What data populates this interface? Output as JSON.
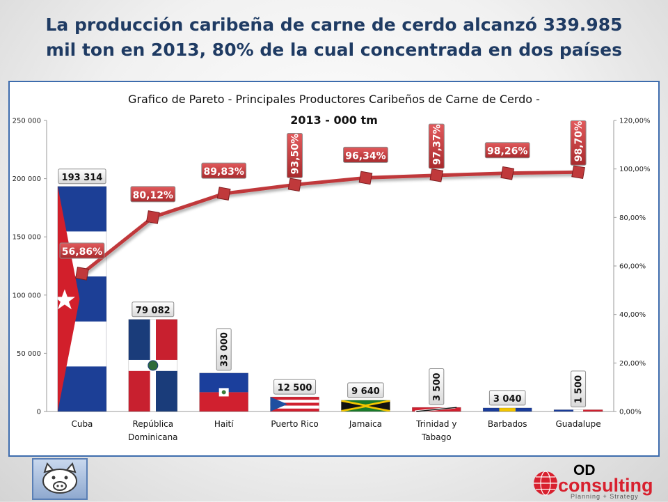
{
  "headline": {
    "line1": "La producción caribeña de carne de cerdo alcanzó 339.985",
    "line2": "mil ton en 2013, 80% de la cual concentrada en dos países"
  },
  "chart_data": {
    "type": "bar",
    "title_line1": "Grafico de Pareto - Principales Productores Caribeños de Carne de Cerdo -",
    "title_line2": "2013 - 000 tm",
    "categories": [
      [
        "Cuba"
      ],
      [
        "República",
        "Dominicana"
      ],
      [
        "Haití"
      ],
      [
        "Puerto Rico"
      ],
      [
        "Jamaica"
      ],
      [
        "Trinidad y",
        "Tabago"
      ],
      [
        "Barbados"
      ],
      [
        "Guadalupe"
      ]
    ],
    "values": [
      193314,
      79082,
      33000,
      12500,
      9640,
      3500,
      3040,
      1500
    ],
    "value_labels": [
      "193 314",
      "79 082",
      "33 000",
      "12 500",
      "9 640",
      "3 500",
      "3 040",
      "1 500"
    ],
    "value_label_vertical": [
      false,
      false,
      true,
      false,
      false,
      true,
      false,
      true
    ],
    "cumulative_pct": [
      56.86,
      80.12,
      89.83,
      93.5,
      96.34,
      97.37,
      98.26,
      98.7
    ],
    "cumulative_labels": [
      "56,86%",
      "80,12%",
      "89,83%",
      "93,50%",
      "96,34%",
      "97,37%",
      "98,26%",
      "98,70%"
    ],
    "cumulative_label_vertical": [
      false,
      false,
      false,
      true,
      false,
      true,
      false,
      true
    ],
    "ylim": [
      0,
      250000
    ],
    "yticks": [
      0,
      50000,
      100000,
      150000,
      200000,
      250000
    ],
    "ytick_labels": [
      "0",
      "50 000",
      "100 000",
      "150 000",
      "200 000",
      "250 000"
    ],
    "y2lim": [
      0,
      120
    ],
    "y2ticks": [
      0,
      20,
      40,
      60,
      80,
      100,
      120
    ],
    "y2tick_labels": [
      "0,00%",
      "20,00%",
      "40,00%",
      "60,00%",
      "80,00%",
      "100,00%",
      "120,00%"
    ],
    "grid": false,
    "bar_fill_style": [
      "cuba-flag",
      "dominican-flag",
      "haiti-flag",
      "puerto-rico-flag",
      "jamaica-flag",
      "trinidad-flag",
      "barbados-flag",
      "guadeloupe-flag"
    ],
    "line_color": "#c0393b",
    "label_color": "#c0393b"
  },
  "branding": {
    "od": "OD",
    "name": "consulting",
    "tagline": "Planning + Strategy"
  }
}
